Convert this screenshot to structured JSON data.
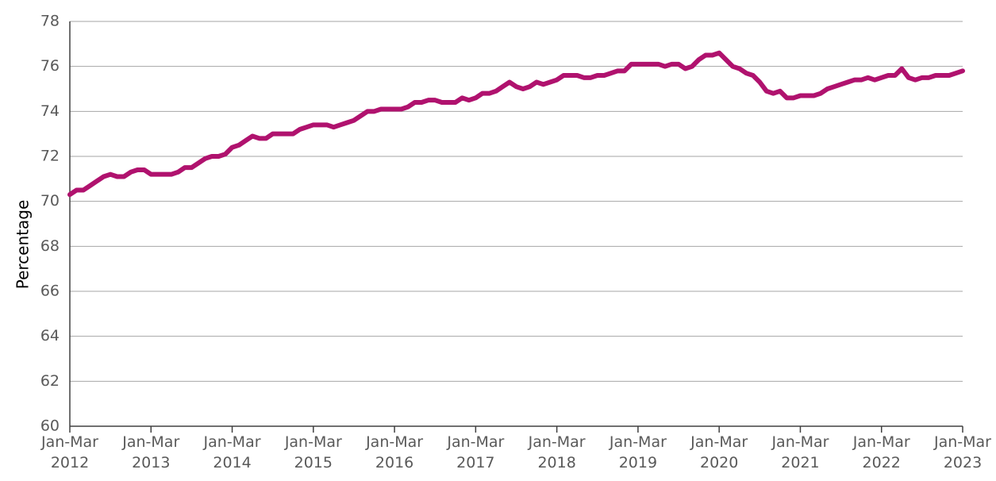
{
  "chart_data": {
    "type": "line",
    "y_label": "Percentage",
    "categories": [
      "Jan-Mar 2012",
      null,
      null,
      null,
      null,
      null,
      null,
      null,
      null,
      null,
      null,
      null,
      "Jan-Mar 2013",
      null,
      null,
      null,
      null,
      null,
      null,
      null,
      null,
      null,
      null,
      null,
      "Jan-Mar 2014",
      null,
      null,
      null,
      null,
      null,
      null,
      null,
      null,
      null,
      null,
      null,
      "Jan-Mar 2015",
      null,
      null,
      null,
      null,
      null,
      null,
      null,
      null,
      null,
      null,
      null,
      "Jan-Mar 2016",
      null,
      null,
      null,
      null,
      null,
      null,
      null,
      null,
      null,
      null,
      null,
      "Jan-Mar 2017",
      null,
      null,
      null,
      null,
      null,
      null,
      null,
      null,
      null,
      null,
      null,
      "Jan-Mar 2018",
      null,
      null,
      null,
      null,
      null,
      null,
      null,
      null,
      null,
      null,
      null,
      "Jan-Mar 2019",
      null,
      null,
      null,
      null,
      null,
      null,
      null,
      null,
      null,
      null,
      null,
      "Jan-Mar 2020",
      null,
      null,
      null,
      null,
      null,
      null,
      null,
      null,
      null,
      null,
      null,
      "Jan-Mar 2021",
      null,
      null,
      null,
      null,
      null,
      null,
      null,
      null,
      null,
      null,
      null,
      "Jan-Mar 2022",
      null,
      null,
      null,
      null,
      null,
      null,
      null,
      null,
      null,
      null,
      null,
      "Jan-Mar 2023"
    ],
    "values": [
      70.3,
      70.5,
      70.5,
      70.7,
      70.9,
      71.1,
      71.2,
      71.1,
      71.1,
      71.3,
      71.4,
      71.4,
      71.2,
      71.2,
      71.2,
      71.2,
      71.3,
      71.5,
      71.5,
      71.7,
      71.9,
      72.0,
      72.0,
      72.1,
      72.4,
      72.5,
      72.7,
      72.9,
      72.8,
      72.8,
      73.0,
      73.0,
      73.0,
      73.0,
      73.2,
      73.3,
      73.4,
      73.4,
      73.4,
      73.3,
      73.4,
      73.5,
      73.6,
      73.8,
      74.0,
      74.0,
      74.1,
      74.1,
      74.1,
      74.1,
      74.2,
      74.4,
      74.4,
      74.5,
      74.5,
      74.4,
      74.4,
      74.4,
      74.6,
      74.5,
      74.6,
      74.8,
      74.8,
      74.9,
      75.1,
      75.3,
      75.1,
      75.0,
      75.1,
      75.3,
      75.2,
      75.3,
      75.4,
      75.6,
      75.6,
      75.6,
      75.5,
      75.5,
      75.6,
      75.6,
      75.7,
      75.8,
      75.8,
      76.1,
      76.1,
      76.1,
      76.1,
      76.1,
      76.0,
      76.1,
      76.1,
      75.9,
      76.0,
      76.3,
      76.5,
      76.5,
      76.6,
      76.3,
      76.0,
      75.9,
      75.7,
      75.6,
      75.3,
      74.9,
      74.8,
      74.9,
      74.6,
      74.6,
      74.7,
      74.7,
      74.7,
      74.8,
      75.0,
      75.1,
      75.2,
      75.3,
      75.4,
      75.4,
      75.5,
      75.4,
      75.5,
      75.6,
      75.6,
      75.9,
      75.5,
      75.4,
      75.5,
      75.5,
      75.6,
      75.6,
      75.6,
      75.7,
      75.8
    ],
    "color": "#b0126e",
    "ylim": [
      60,
      78
    ],
    "yticks": [
      60,
      62,
      64,
      66,
      68,
      70,
      72,
      74,
      76,
      78
    ],
    "grid": true
  }
}
